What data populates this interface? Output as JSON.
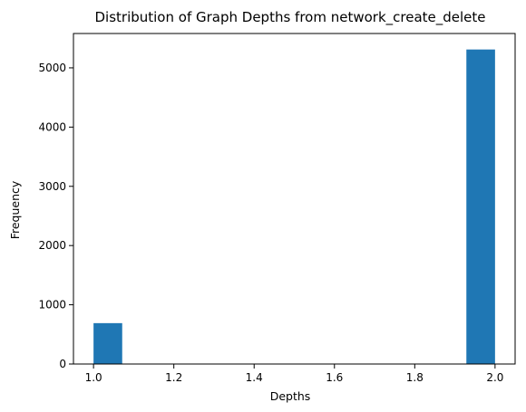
{
  "chart_data": {
    "type": "bar",
    "title": "Distribution of Graph Depths from network_create_delete",
    "xlabel": "Depths",
    "ylabel": "Frequency",
    "xlim": [
      0.95,
      2.05
    ],
    "ylim": [
      0,
      5580
    ],
    "xticks": [
      "1.0",
      "1.2",
      "1.4",
      "1.6",
      "1.8",
      "2.0"
    ],
    "yticks": [
      "0",
      "1000",
      "2000",
      "3000",
      "4000",
      "5000"
    ],
    "bins": [
      {
        "x0": 1.0,
        "x1": 1.0714,
        "value": 690
      },
      {
        "x0": 1.9286,
        "x1": 2.0,
        "value": 5310
      }
    ],
    "bar_color": "#1f77b4",
    "grid": false
  }
}
